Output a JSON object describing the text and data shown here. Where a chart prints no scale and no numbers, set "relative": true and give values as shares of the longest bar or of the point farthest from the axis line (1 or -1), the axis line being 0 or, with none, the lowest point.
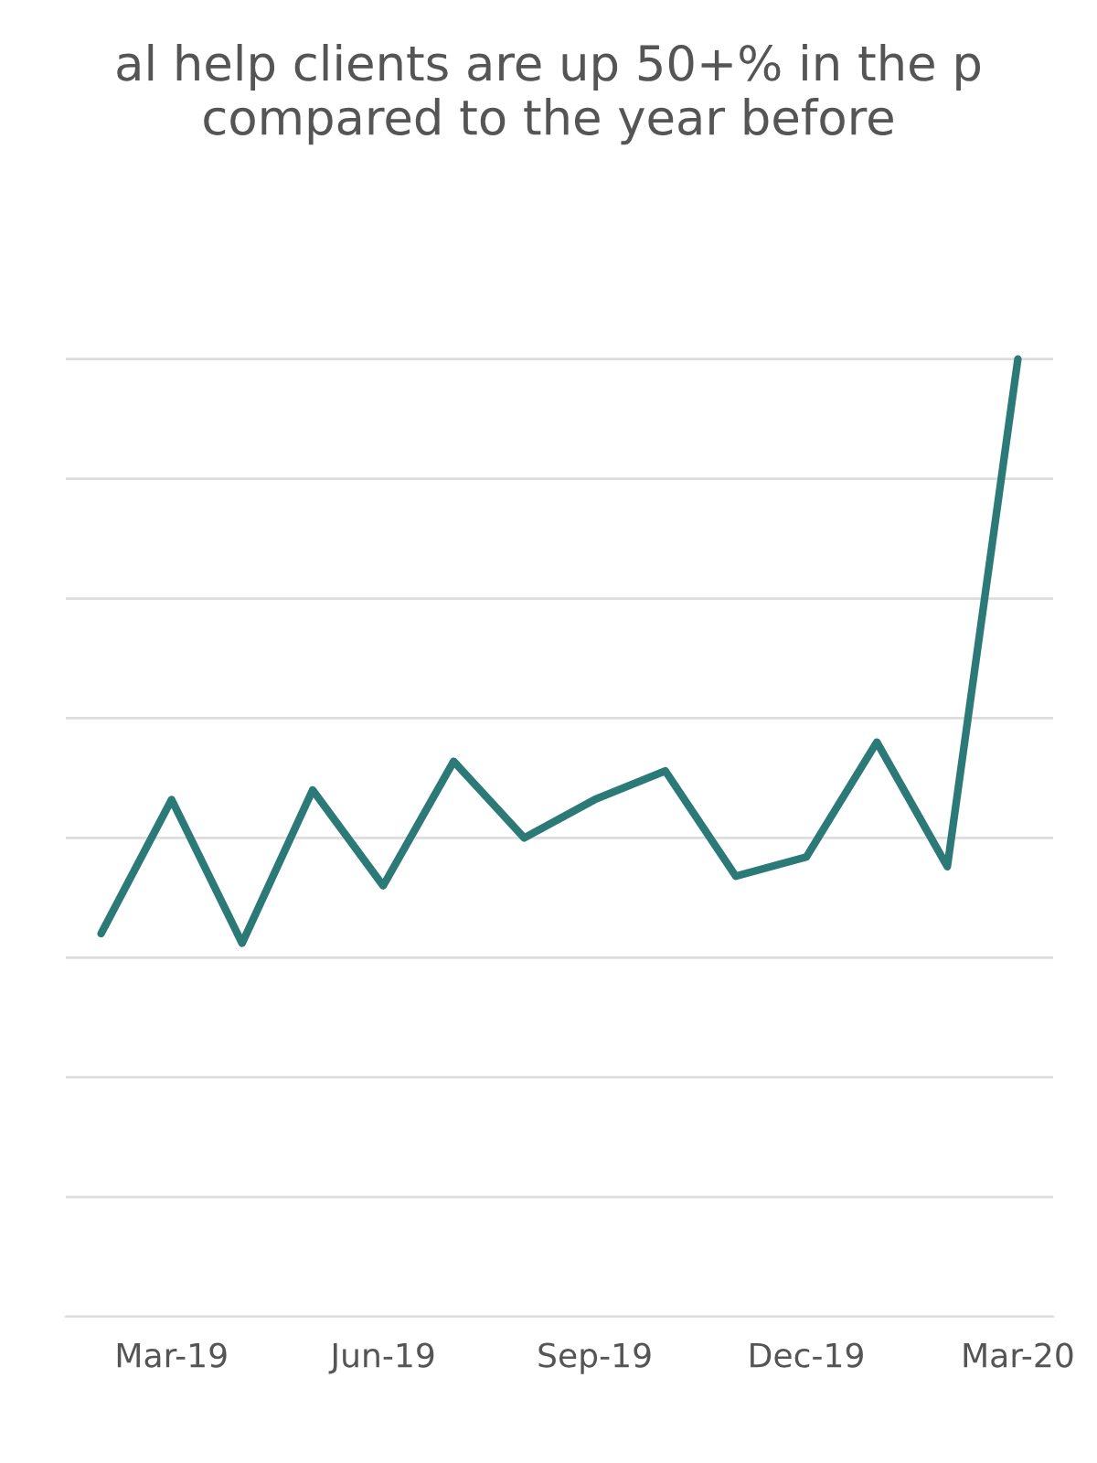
{
  "chart_data": {
    "type": "line",
    "title": "al help clients are up 50+% in the p\ncompared to the year before",
    "relative": true,
    "grid": "y",
    "categories": [
      null,
      "Mar-19",
      null,
      null,
      "Jun-19",
      null,
      null,
      "Sep-19",
      null,
      null,
      "Dec-19",
      null,
      null,
      "Mar-20"
    ],
    "series": [
      {
        "color": "#2b7a78",
        "values": [
          0.4,
          0.54,
          0.39,
          0.55,
          0.45,
          0.58,
          0.5,
          0.54,
          0.57,
          0.46,
          0.48,
          0.6,
          0.47,
          1.0
        ]
      }
    ]
  }
}
